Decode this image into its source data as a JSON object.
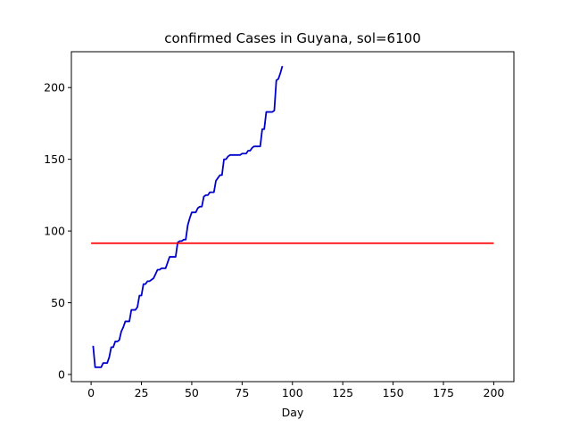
{
  "chart_data": {
    "type": "line",
    "title": "confirmed Cases in Guyana, sol=6100",
    "xlabel": "Day",
    "ylabel": "",
    "xlim": [
      -9.8,
      210
    ],
    "ylim": [
      -5,
      225
    ],
    "xticks": [
      0,
      25,
      50,
      75,
      100,
      125,
      150,
      175,
      200
    ],
    "yticks": [
      0,
      50,
      100,
      150,
      200
    ],
    "grid": false,
    "series": [
      {
        "color": "#0000cd",
        "x": [
          1,
          2,
          3,
          4,
          5,
          6,
          7,
          8,
          9,
          10,
          11,
          12,
          13,
          14,
          15,
          16,
          17,
          18,
          19,
          20,
          21,
          22,
          23,
          24,
          25,
          26,
          27,
          28,
          29,
          30,
          31,
          32,
          33,
          34,
          35,
          36,
          37,
          38,
          39,
          40,
          41,
          42,
          43,
          44,
          45,
          46,
          47,
          48,
          49,
          50,
          51,
          52,
          53,
          54,
          55,
          56,
          57,
          58,
          59,
          60,
          61,
          62,
          63,
          64,
          65,
          66,
          67,
          68,
          69,
          70,
          71,
          72,
          73,
          74,
          75,
          76,
          77,
          78,
          79,
          80,
          81,
          82,
          83,
          84,
          85,
          86,
          87,
          88,
          89,
          90,
          91,
          92,
          93,
          94,
          95
        ],
        "y": [
          20,
          5,
          5,
          5,
          5,
          8,
          8,
          8,
          12,
          19,
          19,
          23,
          23,
          24,
          30,
          33,
          37,
          37,
          37,
          45,
          45,
          45,
          47,
          55,
          55,
          63,
          63,
          65,
          65,
          66,
          67,
          70,
          73,
          73,
          74,
          74,
          74,
          78,
          82,
          82,
          82,
          82,
          92,
          93,
          93,
          94,
          94,
          104,
          109,
          113,
          113,
          113,
          116,
          117,
          117,
          124,
          125,
          125,
          127,
          127,
          127,
          135,
          137,
          139,
          139,
          150,
          150,
          152,
          153,
          153,
          153,
          153,
          153,
          153,
          154,
          154,
          154,
          156,
          156,
          158,
          159,
          159,
          159,
          159,
          171,
          171,
          183,
          183,
          183,
          183,
          184,
          205,
          206,
          210,
          215
        ]
      },
      {
        "color": "#ff0000",
        "x": [
          0,
          200
        ],
        "y": [
          91.5,
          91.5
        ]
      }
    ]
  }
}
